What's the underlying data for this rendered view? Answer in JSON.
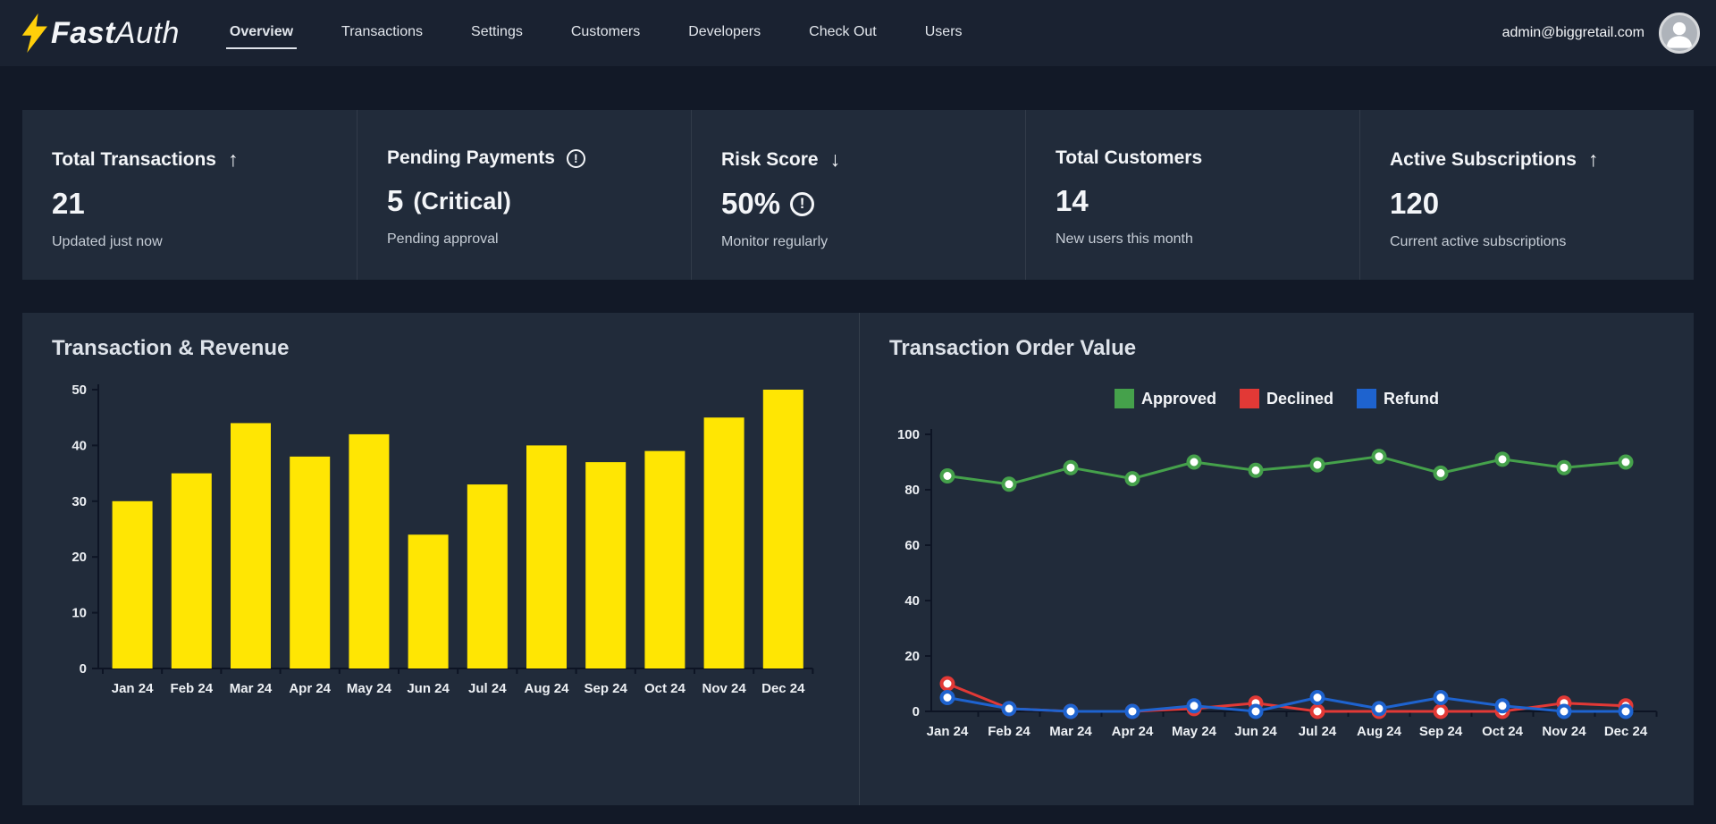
{
  "header": {
    "logo": {
      "brand_bold": "Fast",
      "brand_light": "Auth"
    },
    "nav_items": [
      {
        "label": "Overview",
        "active": true
      },
      {
        "label": "Transactions",
        "active": false
      },
      {
        "label": "Settings",
        "active": false
      },
      {
        "label": "Customers",
        "active": false
      },
      {
        "label": "Developers",
        "active": false
      },
      {
        "label": "Check Out",
        "active": false
      },
      {
        "label": "Users",
        "active": false
      }
    ],
    "user_email": "admin@biggretail.com"
  },
  "stats_cards": [
    {
      "title": "Total Transactions",
      "title_icon": "arrow-up",
      "value": "21",
      "value_suffix": "",
      "value_icon": "",
      "subtitle": "Updated just now"
    },
    {
      "title": "Pending Payments",
      "title_icon": "alert-circle",
      "value": "5",
      "value_suffix": "(Critical)",
      "value_icon": "",
      "subtitle": "Pending approval"
    },
    {
      "title": "Risk Score",
      "title_icon": "arrow-down",
      "value": "50%",
      "value_suffix": "",
      "value_icon": "alert-circle",
      "subtitle": "Monitor regularly"
    },
    {
      "title": "Total Customers",
      "title_icon": "",
      "value": "14",
      "value_suffix": "",
      "value_icon": "",
      "subtitle": "New users this month"
    },
    {
      "title": "Active Subscriptions",
      "title_icon": "arrow-up",
      "value": "120",
      "value_suffix": "",
      "value_icon": "",
      "subtitle": "Current active subscriptions"
    }
  ],
  "chart_data": [
    {
      "type": "bar",
      "title": "Transaction & Revenue",
      "categories": [
        "Jan 24",
        "Feb 24",
        "Mar 24",
        "Apr 24",
        "May 24",
        "Jun 24",
        "Jul 24",
        "Aug 24",
        "Sep 24",
        "Oct 24",
        "Nov 24",
        "Dec 24"
      ],
      "values": [
        30,
        35,
        44,
        38,
        42,
        24,
        33,
        40,
        37,
        39,
        45,
        50
      ],
      "xlabel": "",
      "ylabel": "",
      "ylim": [
        0,
        50
      ],
      "yticks": [
        0,
        10,
        20,
        30,
        40,
        50
      ],
      "bar_color": "#ffe603",
      "grid": false,
      "legend_position": "none"
    },
    {
      "type": "line",
      "title": "Transaction Order Value",
      "categories": [
        "Jan 24",
        "Feb 24",
        "Mar 24",
        "Apr 24",
        "May 24",
        "Jun 24",
        "Jul 24",
        "Aug 24",
        "Sep 24",
        "Oct 24",
        "Nov 24",
        "Dec 24"
      ],
      "series": [
        {
          "name": "Approved",
          "color": "#45a14b",
          "values": [
            85,
            82,
            88,
            84,
            90,
            87,
            89,
            92,
            86,
            91,
            88,
            90
          ]
        },
        {
          "name": "Declined",
          "color": "#e23936",
          "values": [
            10,
            1,
            0,
            0,
            1,
            3,
            0,
            0,
            0,
            0,
            3,
            2
          ]
        },
        {
          "name": "Refund",
          "color": "#1e63cf",
          "values": [
            5,
            1,
            0,
            0,
            2,
            0,
            5,
            1,
            5,
            2,
            0,
            0
          ]
        }
      ],
      "xlabel": "",
      "ylabel": "",
      "ylim": [
        0,
        100
      ],
      "yticks": [
        0,
        20,
        40,
        60,
        80,
        100
      ],
      "marker_style": "white-center-ring",
      "grid": false,
      "legend_position": "top"
    }
  ],
  "theme": {
    "accent_yellow": "#ffcf0a",
    "header_bg": "#1a2231",
    "page_bg": "#121927",
    "panel_bg": "#212b3a",
    "axis_color": "#0d1424"
  }
}
